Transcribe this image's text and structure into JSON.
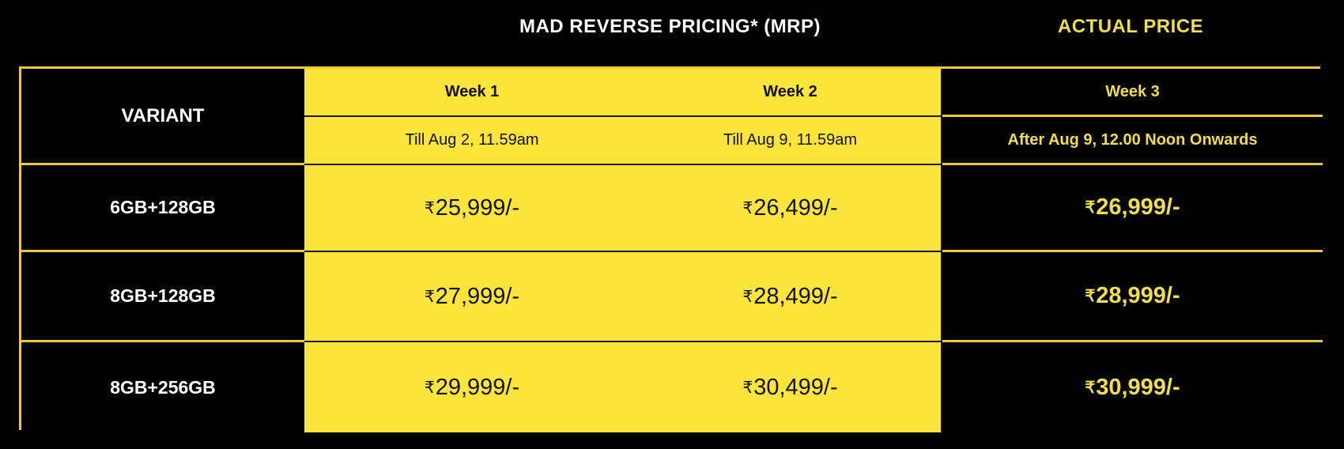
{
  "headings": {
    "mrp": "MAD REVERSE PRICING* (MRP)",
    "actual": "ACTUAL PRICE"
  },
  "table": {
    "variant_header": "VARIANT",
    "columns": [
      {
        "week": "Week 1",
        "period": "Till Aug 2, 11.59am"
      },
      {
        "week": "Week 2",
        "period": "Till Aug 9, 11.59am"
      },
      {
        "week": "Week 3",
        "period": "After Aug 9, 12.00 Noon Onwards"
      }
    ],
    "currency_symbol": "₹",
    "rows": [
      {
        "variant": "6GB+128GB",
        "prices": [
          "25,999/-",
          "26,499/-",
          "26,999/-"
        ]
      },
      {
        "variant": "8GB+128GB",
        "prices": [
          "27,999/-",
          "28,499/-",
          "28,999/-"
        ]
      },
      {
        "variant": "8GB+256GB",
        "prices": [
          "29,999/-",
          "30,499/-",
          "30,999/-"
        ]
      }
    ]
  },
  "colors": {
    "background": "#000000",
    "mrp_yellow": "#fde53c",
    "actual_text": "#f2de4a",
    "border_gold": "#e9c83a"
  }
}
